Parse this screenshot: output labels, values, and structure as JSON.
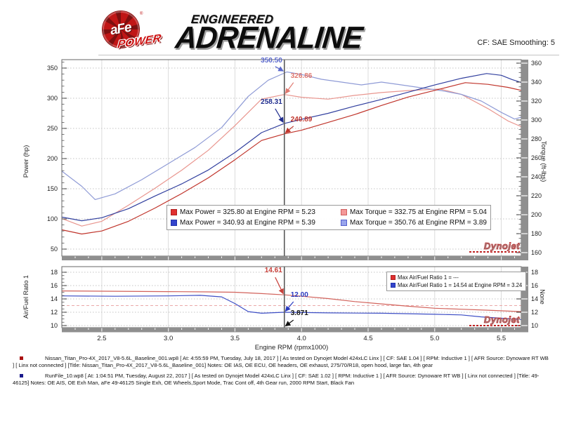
{
  "header": {
    "logo_brand": "aFe",
    "logo_sub": "POWER",
    "logo_reg": "®",
    "title_line1": "ENGINEERED",
    "title_line2": "ADRENALINE",
    "cf_label": "CF: SAE Smoothing: 5"
  },
  "colors": {
    "power_run2_blue": "#32409f",
    "power_run1_red": "#c0342b",
    "torque_run2_lightblue": "#8f9bd6",
    "torque_run1_pink": "#e9968f",
    "afr_run1_red": "#d2625b",
    "afr_run2_blue": "#3d4ec5",
    "cursor_gray": "#5a5a5a",
    "frame_band_gray": "#8f8f8f"
  },
  "chart_data": [
    {
      "type": "line",
      "xlabel": "Engine RPM (rpmx1000)",
      "ylabel_left": "Power (hp)",
      "ylabel_right": "Torque (ft-lbs)",
      "x_range": [
        2.2,
        5.65
      ],
      "x_ticks": [
        2.5,
        3.0,
        3.5,
        4.0,
        4.5,
        5.0,
        5.5
      ],
      "left_ticks": [
        50,
        100,
        150,
        200,
        250,
        300,
        350
      ],
      "right_ticks": [
        160,
        180,
        200,
        220,
        240,
        260,
        280,
        300,
        320,
        340,
        360
      ],
      "cursor_rpm": 3.871,
      "grid": true,
      "legend_position": "bottom-center-inside",
      "series": [
        {
          "name": "power-run2-afe",
          "axis": "left",
          "color": "#32409f",
          "x": [
            2.2,
            2.35,
            2.5,
            2.7,
            2.9,
            3.1,
            3.3,
            3.5,
            3.7,
            3.871,
            4.0,
            4.2,
            4.4,
            4.6,
            4.8,
            5.0,
            5.2,
            5.39,
            5.5,
            5.58,
            5.65
          ],
          "values": [
            103,
            97,
            102,
            117,
            138,
            158,
            181,
            210,
            243,
            258.31,
            265,
            275,
            287,
            298,
            310,
            322,
            333,
            340.93,
            338,
            331,
            326
          ]
        },
        {
          "name": "power-run1-baseline",
          "axis": "left",
          "color": "#c0342b",
          "x": [
            2.2,
            2.35,
            2.5,
            2.7,
            2.9,
            3.1,
            3.3,
            3.5,
            3.7,
            3.871,
            4.0,
            4.2,
            4.4,
            4.6,
            4.8,
            5.0,
            5.23,
            5.4,
            5.55,
            5.65
          ],
          "values": [
            82,
            75,
            80,
            96,
            118,
            142,
            168,
            198,
            230,
            240.89,
            247,
            260,
            273,
            288,
            302,
            313,
            325.8,
            323,
            318,
            313
          ]
        },
        {
          "name": "torque-run2-afe",
          "axis": "right",
          "color": "#8f9bd6",
          "x": [
            2.2,
            2.35,
            2.45,
            2.6,
            2.8,
            3.0,
            3.2,
            3.4,
            3.6,
            3.75,
            3.89,
            4.0,
            4.15,
            4.3,
            4.45,
            4.6,
            4.75,
            4.9,
            5.05,
            5.2,
            5.35,
            5.5,
            5.6,
            5.65
          ],
          "values": [
            246,
            230,
            216,
            222,
            237,
            254,
            271,
            292,
            325,
            342,
            350.76,
            348,
            343,
            340,
            337,
            340,
            337,
            334,
            331,
            327,
            320,
            308,
            301,
            303
          ]
        },
        {
          "name": "torque-run1-baseline",
          "axis": "right",
          "color": "#e9968f",
          "x": [
            2.2,
            2.35,
            2.5,
            2.7,
            2.9,
            3.1,
            3.3,
            3.5,
            3.7,
            3.871,
            4.0,
            4.2,
            4.4,
            4.6,
            4.8,
            5.04,
            5.2,
            5.4,
            5.55,
            5.65
          ],
          "values": [
            196,
            188,
            193,
            210,
            228,
            247,
            268,
            294,
            322,
            326.86,
            324,
            322,
            326,
            329,
            331,
            332.75,
            327,
            312,
            299,
            293
          ]
        }
      ],
      "legend": [
        {
          "swatch": "power-red",
          "text": "Max Power = 325.80 at Engine RPM = 5.23"
        },
        {
          "swatch": "torque-pink",
          "text": "Max Torque = 332.75 at Engine RPM = 5.04"
        },
        {
          "swatch": "power-blue",
          "text": "Max Power = 340.93 at Engine RPM = 5.39"
        },
        {
          "swatch": "torque-lightblue",
          "text": "Max Torque = 350.76 at Engine RPM = 3.89"
        }
      ],
      "annotations": [
        {
          "text": "350.50",
          "color": "#5a68cc",
          "axis": "right",
          "value": 350.5,
          "side": "left",
          "lift": 11
        },
        {
          "text": "326.86",
          "color": "#e0786f",
          "axis": "right",
          "value": 326.86,
          "side": "right",
          "lift": 20
        },
        {
          "text": "258.31",
          "color": "#1f2c8e",
          "axis": "left",
          "value": 258.31,
          "side": "left",
          "lift": 24
        },
        {
          "text": "240.89",
          "color": "#c0342b",
          "axis": "left",
          "value": 240.89,
          "side": "right",
          "lift": 14
        }
      ],
      "watermark": "Dynojet"
    },
    {
      "type": "line",
      "xlabel": "Engine RPM (rpmx1000)",
      "ylabel_left": "Air/Fuel Ratio 1",
      "ylabel_right": "None",
      "x_range": [
        2.2,
        5.65
      ],
      "x_ticks": [
        2.5,
        3.0,
        3.5,
        4.0,
        4.5,
        5.0,
        5.5
      ],
      "left_ticks": [
        10,
        12,
        14,
        16,
        18
      ],
      "right_ticks": [
        10,
        12,
        14,
        16,
        18
      ],
      "cursor_rpm": 3.871,
      "grid": true,
      "ref_line": {
        "value": 13,
        "color": "#eba8a8"
      },
      "series": [
        {
          "name": "afr-run1-baseline",
          "axis": "left",
          "color": "#d2625b",
          "x": [
            2.2,
            2.6,
            3.0,
            3.3,
            3.5,
            3.7,
            3.871,
            4.0,
            4.2,
            4.4,
            4.6,
            4.8,
            5.0,
            5.2,
            5.4,
            5.65
          ],
          "values": [
            15.2,
            15.15,
            15.1,
            15.05,
            15.0,
            14.8,
            14.61,
            14.4,
            14.05,
            13.6,
            13.25,
            12.9,
            12.6,
            12.45,
            12.3,
            12.1
          ]
        },
        {
          "name": "afr-run2-afe",
          "axis": "left",
          "color": "#3d4ec5",
          "x": [
            2.2,
            2.6,
            3.0,
            3.24,
            3.4,
            3.5,
            3.6,
            3.7,
            3.871,
            4.2,
            4.6,
            5.0,
            5.2,
            5.35,
            5.5,
            5.65
          ],
          "values": [
            14.45,
            14.4,
            14.45,
            14.54,
            14.3,
            13.3,
            12.1,
            11.85,
            12.0,
            11.9,
            11.85,
            11.7,
            11.6,
            11.3,
            11.1,
            10.9
          ]
        }
      ],
      "legend": [
        {
          "swatch": "power-red",
          "text": "Max Air/Fuel Ratio 1 = ---"
        },
        {
          "swatch": "power-blue",
          "text": "Max Air/Fuel Ratio 1 = 14.54 at Engine RPM = 3.24"
        }
      ],
      "annotations": [
        {
          "text": "14.61",
          "color": "#c8403a",
          "axis": "left",
          "value": 14.61,
          "side": "left",
          "lift": 28
        },
        {
          "text": "12.00",
          "color": "#2a3ac0",
          "axis": "left",
          "value": 12.0,
          "side": "right",
          "lift": 18
        },
        {
          "text": "3.871",
          "color": "#111111",
          "axis": "left",
          "value": 9.78,
          "side": "right",
          "lift": 13
        }
      ],
      "watermark": "Dynojet"
    }
  ],
  "footer": {
    "runs": [
      {
        "bullet_color": "#aa1111",
        "text": "Nissan_Titan_Pro-4X_2017_V8-5.6L_Baseline_001.wp8 [ At: 4:55:59 PM, Tuesday, July 18, 2017 ] [ As tested on Dynojet Model 424xLC Linx ] [ CF: SAE 1.04 ] [ RPM: Inductive 1 ] [ AFR Source: Dynoware RT WB ] [ Linx not connected ] [Title: Nissan_Titan_Pro-4X_2017_V8-5.6L_Baseline_001]  Notes: OE IAS, OE ECU, OE headers, OE exhaust, 275/70/R18, open hood, large fan, 4th gear"
      },
      {
        "bullet_color": "#1a1a8c",
        "text": "RunFile_10.wp8 [ At: 1:04:51 PM, Tuesday, August 22, 2017 ] [ As tested on Dynojet Model 424xLC Linx ] [ CF: SAE 1.02 ] [ RPM: Inductive 1 ] [ AFR Source: Dynoware RT WB ] [ Linx not connected ] [Title: 49-46125]  Notes: OE AIS, OE Exh Man, aFe 49-46125 Single Exh, OE Wheels,Sport Mode, Trac Cont off, 4th Gear run, 2000 RPM Start, Black Fan"
      }
    ]
  }
}
